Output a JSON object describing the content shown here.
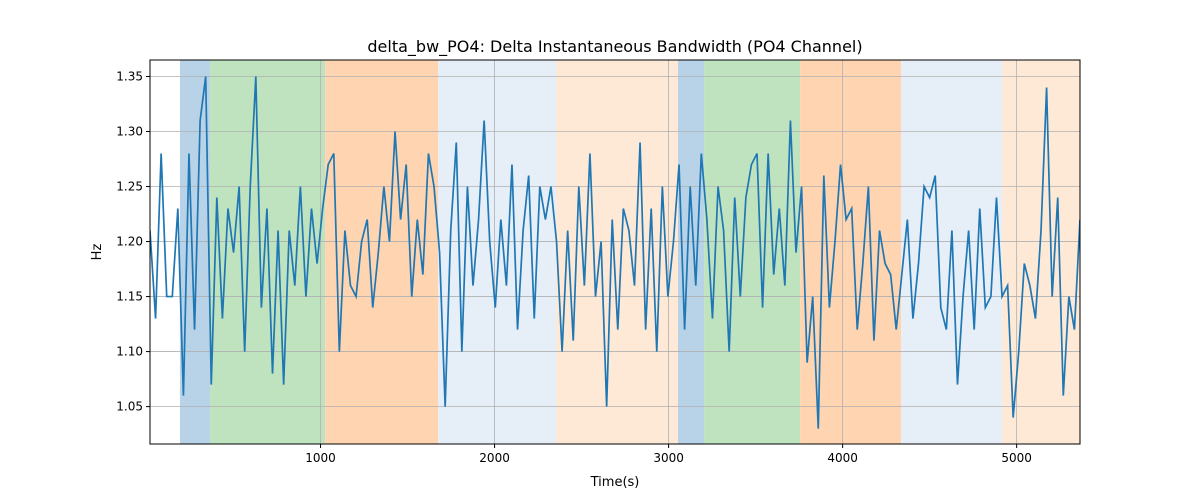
{
  "chart_data": {
    "type": "line",
    "title": "delta_bw_PO4: Delta Instantaneous Bandwidth (PO4 Channel)",
    "xlabel": "Time(s)",
    "ylabel": "Hz",
    "color": "#1f77b4",
    "grid": true,
    "xlim": [
      20,
      5364
    ],
    "ylim": [
      1.016,
      1.365
    ],
    "xticks": [
      1000,
      2000,
      3000,
      4000,
      5000
    ],
    "yticks": [
      1.05,
      {
        "value": 1.1,
        "label": "1.10"
      },
      1.15,
      {
        "value": 1.2,
        "label": "1.20"
      },
      1.25,
      {
        "value": 1.3,
        "label": "1.30"
      },
      1.35
    ],
    "spans": [
      {
        "start": 192,
        "end": 365,
        "color": "#b8d2e7"
      },
      {
        "start": 365,
        "end": 1026,
        "color": "#c0e3bf"
      },
      {
        "start": 1026,
        "end": 1675,
        "color": "#ffd4b0"
      },
      {
        "start": 1675,
        "end": 2353,
        "color": "#e6eef7"
      },
      {
        "start": 2353,
        "end": 3054,
        "color": "#fee9d6"
      },
      {
        "start": 3054,
        "end": 3204,
        "color": "#b8d2e7"
      },
      {
        "start": 3204,
        "end": 3756,
        "color": "#c0e3bf"
      },
      {
        "start": 3756,
        "end": 4336,
        "color": "#ffd4b0"
      },
      {
        "start": 4336,
        "end": 4917,
        "color": "#e6eef7"
      },
      {
        "start": 4917,
        "end": 5364,
        "color": "#fee9d6"
      }
    ],
    "x": [
      20,
      52,
      84,
      116,
      148,
      180,
      212,
      244,
      276,
      308,
      340,
      372,
      404,
      436,
      468,
      500,
      532,
      564,
      596,
      628,
      660,
      692,
      724,
      756,
      788,
      820,
      852,
      884,
      916,
      948,
      980,
      1012,
      1044,
      1076,
      1108,
      1140,
      1172,
      1204,
      1236,
      1268,
      1300,
      1332,
      1364,
      1396,
      1428,
      1460,
      1492,
      1524,
      1556,
      1588,
      1620,
      1652,
      1684,
      1716,
      1748,
      1780,
      1812,
      1844,
      1876,
      1908,
      1940,
      1972,
      2004,
      2036,
      2068,
      2100,
      2132,
      2164,
      2196,
      2228,
      2260,
      2292,
      2324,
      2356,
      2388,
      2420,
      2452,
      2484,
      2516,
      2548,
      2580,
      2612,
      2644,
      2676,
      2708,
      2740,
      2772,
      2804,
      2836,
      2868,
      2900,
      2932,
      2964,
      2996,
      3028,
      3060,
      3092,
      3124,
      3156,
      3188,
      3220,
      3252,
      3284,
      3316,
      3348,
      3380,
      3412,
      3444,
      3476,
      3508,
      3540,
      3572,
      3604,
      3636,
      3668,
      3700,
      3732,
      3764,
      3796,
      3828,
      3860,
      3892,
      3924,
      3956,
      3988,
      4020,
      4052,
      4084,
      4116,
      4148,
      4180,
      4212,
      4244,
      4276,
      4308,
      4340,
      4372,
      4404,
      4436,
      4468,
      4500,
      4532,
      4564,
      4596,
      4628,
      4660,
      4692,
      4724,
      4756,
      4788,
      4820,
      4852,
      4884,
      4916,
      4948,
      4980,
      5012,
      5044,
      5076,
      5108,
      5140,
      5172,
      5204,
      5236,
      5268,
      5300,
      5332,
      5364
    ],
    "values": [
      1.21,
      1.13,
      1.28,
      1.15,
      1.15,
      1.23,
      1.06,
      1.28,
      1.12,
      1.31,
      1.35,
      1.07,
      1.24,
      1.13,
      1.23,
      1.19,
      1.25,
      1.1,
      1.25,
      1.35,
      1.14,
      1.23,
      1.08,
      1.21,
      1.07,
      1.21,
      1.16,
      1.25,
      1.15,
      1.23,
      1.18,
      1.23,
      1.27,
      1.28,
      1.1,
      1.21,
      1.16,
      1.15,
      1.2,
      1.22,
      1.14,
      1.19,
      1.25,
      1.2,
      1.3,
      1.22,
      1.27,
      1.15,
      1.22,
      1.17,
      1.28,
      1.25,
      1.19,
      1.05,
      1.21,
      1.29,
      1.1,
      1.25,
      1.16,
      1.22,
      1.31,
      1.2,
      1.14,
      1.22,
      1.16,
      1.27,
      1.12,
      1.21,
      1.26,
      1.13,
      1.25,
      1.22,
      1.25,
      1.2,
      1.1,
      1.21,
      1.11,
      1.25,
      1.16,
      1.28,
      1.15,
      1.2,
      1.05,
      1.22,
      1.12,
      1.23,
      1.21,
      1.16,
      1.29,
      1.12,
      1.23,
      1.1,
      1.25,
      1.15,
      1.2,
      1.27,
      1.12,
      1.25,
      1.16,
      1.28,
      1.22,
      1.13,
      1.25,
      1.21,
      1.1,
      1.24,
      1.15,
      1.24,
      1.27,
      1.28,
      1.14,
      1.28,
      1.17,
      1.23,
      1.16,
      1.31,
      1.19,
      1.25,
      1.09,
      1.15,
      1.03,
      1.26,
      1.14,
      1.2,
      1.27,
      1.22,
      1.23,
      1.12,
      1.18,
      1.25,
      1.11,
      1.21,
      1.18,
      1.17,
      1.12,
      1.17,
      1.22,
      1.13,
      1.18,
      1.25,
      1.24,
      1.26,
      1.14,
      1.12,
      1.21,
      1.07,
      1.15,
      1.21,
      1.12,
      1.23,
      1.14,
      1.15,
      1.24,
      1.15,
      1.16,
      1.04,
      1.1,
      1.18,
      1.16,
      1.13,
      1.21,
      1.34,
      1.15,
      1.24,
      1.06,
      1.15,
      1.12,
      1.22
    ]
  }
}
